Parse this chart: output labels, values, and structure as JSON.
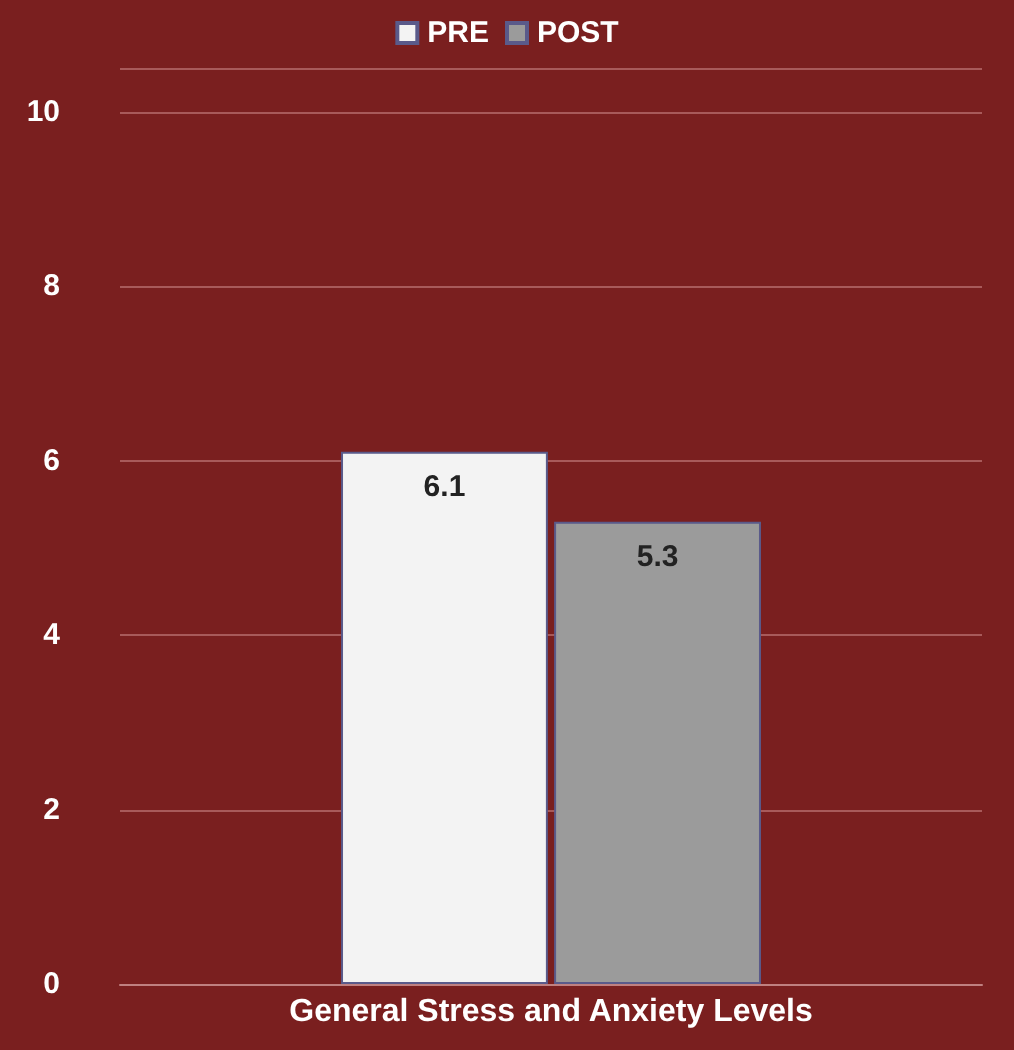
{
  "chart_data": {
    "type": "bar",
    "categories": [
      "General Stress and Anxiety Levels"
    ],
    "series": [
      {
        "name": "PRE",
        "color": "#f3f3f3",
        "values": [
          6.1
        ]
      },
      {
        "name": "POST",
        "color": "#9b9b9b",
        "values": [
          5.3
        ]
      }
    ],
    "ylim": [
      0,
      10.5
    ],
    "yticks": [
      0,
      2,
      4,
      6,
      8,
      10
    ],
    "grid": "y",
    "legend": "top",
    "data_labels": true
  }
}
